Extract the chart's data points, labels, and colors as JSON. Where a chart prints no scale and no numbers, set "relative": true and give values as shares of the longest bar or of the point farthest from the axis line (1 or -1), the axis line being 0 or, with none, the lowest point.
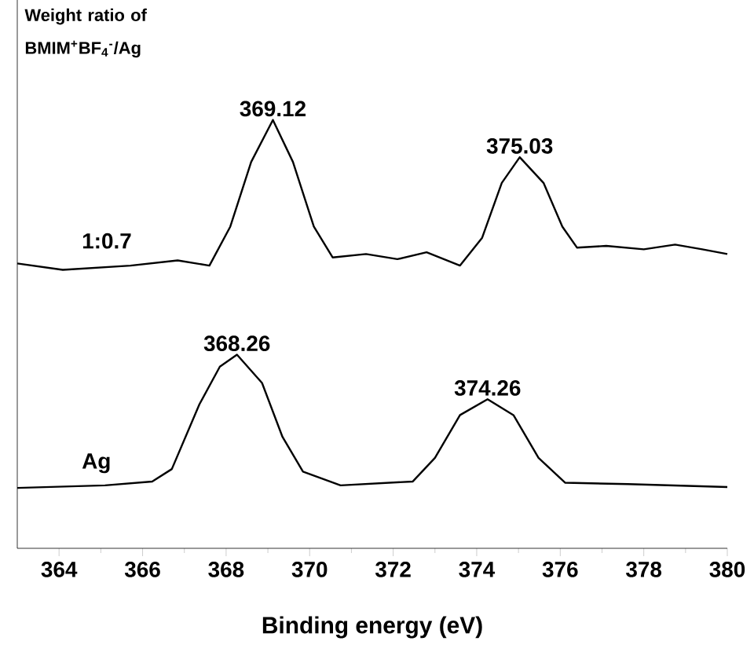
{
  "chart_data": {
    "type": "line",
    "relative": true,
    "xlabel": "Binding energy (eV)",
    "xlim": [
      363,
      380
    ],
    "xticks": [
      364,
      366,
      368,
      370,
      372,
      374,
      376,
      378,
      380
    ],
    "marker": "none",
    "line_style": "solid",
    "grid": false,
    "series": [
      {
        "name": "1:0.7",
        "color": "#000000",
        "x": [
          363.0,
          364.09,
          365.71,
          366.84,
          367.6,
          368.1,
          368.6,
          369.12,
          369.6,
          370.1,
          370.55,
          371.35,
          372.1,
          372.8,
          373.6,
          374.13,
          374.6,
          375.03,
          375.6,
          376.05,
          376.4,
          377.1,
          378.0,
          378.75,
          379.4,
          380.0
        ],
        "values": [
          0.665,
          0.65,
          0.66,
          0.672,
          0.66,
          0.751,
          0.902,
          1.0,
          0.902,
          0.751,
          0.679,
          0.687,
          0.675,
          0.691,
          0.66,
          0.725,
          0.853,
          0.913,
          0.853,
          0.751,
          0.702,
          0.706,
          0.698,
          0.709,
          0.698,
          0.687
        ]
      },
      {
        "name": "Ag",
        "color": "#000000",
        "x": [
          363.0,
          365.1,
          366.23,
          366.7,
          367.36,
          367.85,
          368.26,
          368.86,
          369.35,
          369.84,
          370.74,
          372.47,
          373.0,
          373.6,
          374.26,
          374.88,
          375.48,
          376.12,
          377.62,
          380.0
        ],
        "values": [
          0.141,
          0.147,
          0.156,
          0.185,
          0.336,
          0.424,
          0.452,
          0.386,
          0.26,
          0.179,
          0.147,
          0.156,
          0.211,
          0.311,
          0.348,
          0.311,
          0.211,
          0.153,
          0.15,
          0.143
        ]
      }
    ],
    "annotations": [
      "Weight ratio of BMIM$^{+}$BF$_{4}$$^{-}$/Ag",
      {
        "text": "369.12",
        "x": 369.12,
        "y": 1.0
      },
      {
        "text": "375.03",
        "x": 375.03,
        "y": 0.913
      },
      {
        "text": "368.26",
        "x": 368.26,
        "y": 0.452
      },
      {
        "text": "374.26",
        "x": 374.26,
        "y": 0.348
      }
    ]
  }
}
